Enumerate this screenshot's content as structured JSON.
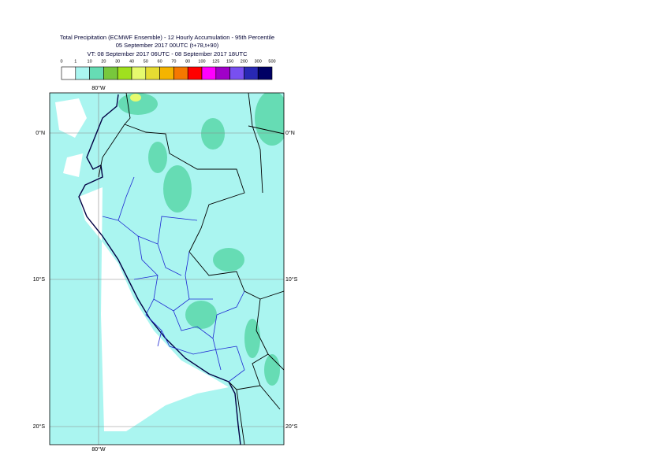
{
  "header": {
    "title": "Total Precipitation (ECMWF Ensemble) - 12 Hourly Accumulation - 95th Percentile",
    "subtitle": "05 September 2017 00UTC (t+78,t+90)",
    "valid_time": "VT: 08 September 2017 06UTC - 08 September 2017 18UTC"
  },
  "legend": {
    "labels": [
      "0",
      "1",
      "10",
      "20",
      "30",
      "40",
      "50",
      "60",
      "70",
      "80",
      "100",
      "125",
      "150",
      "200",
      "300",
      "500"
    ],
    "colors": [
      "#ffffff",
      "#aaf5f0",
      "#66dcb4",
      "#78c83c",
      "#a0e01e",
      "#e6fa6e",
      "#e6dc32",
      "#f5b400",
      "#f57800",
      "#ff0000",
      "#ff00ff",
      "#a000c8",
      "#7850f0",
      "#2828b4",
      "#000064"
    ]
  },
  "map": {
    "lat_labels": [
      "0°N",
      "10°S",
      "20°S"
    ],
    "lon_labels": [
      "80°W"
    ]
  }
}
